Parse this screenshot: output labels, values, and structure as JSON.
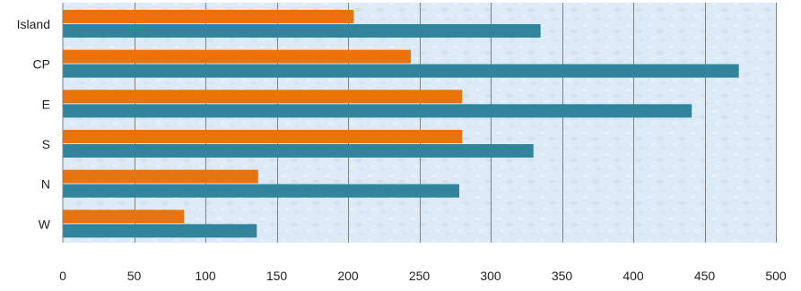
{
  "chart_data": {
    "type": "bar",
    "orientation": "horizontal",
    "categories": [
      "Island",
      "CP",
      "E",
      "S",
      "N",
      "W"
    ],
    "series": [
      {
        "values": [
          204,
          244,
          280,
          280,
          137,
          85
        ],
        "color": "#E8720C"
      },
      {
        "values": [
          335,
          474,
          441,
          330,
          278,
          136
        ],
        "color": "#31849B"
      }
    ],
    "x_ticks": [
      0,
      50,
      100,
      150,
      200,
      250,
      300,
      350,
      400,
      450,
      500
    ],
    "xlim": [
      0,
      500
    ],
    "title": "",
    "xlabel": "",
    "ylabel": "",
    "grid": "vertical",
    "legend": "none",
    "plot_background": "#DCE9F6",
    "gridline_color": "#7F7F7F"
  }
}
